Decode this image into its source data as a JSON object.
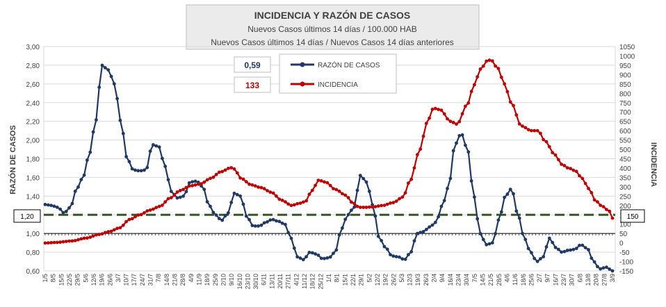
{
  "chart_data": {
    "type": "line",
    "title": "INCIDENCIA Y RAZÓN DE CASOS",
    "subtitle_1": "Nuevos Casos últimos 14 días / 100.000 HAB",
    "subtitle_2": "Nuevos Casos últimos 14 días / Nuevos Casos 14 días anteriores",
    "ylabel_left": "RAZÓN DE CASOS",
    "ylabel_right": "INCIDENCIA",
    "ylim_left": [
      0.6,
      3.0
    ],
    "ylim_right": [
      -150,
      1050
    ],
    "yticks_left": [
      "0,60",
      "0,80",
      "1,00",
      "1,20",
      "1,40",
      "1,60",
      "1,80",
      "2,00",
      "2,20",
      "2,40",
      "2,60",
      "2,80",
      "3,00"
    ],
    "yticks_right": [
      "-150",
      "-100",
      "-50",
      "0",
      "50",
      "100",
      "150",
      "200",
      "250",
      "300",
      "350",
      "400",
      "450",
      "500",
      "550",
      "600",
      "650",
      "700",
      "750",
      "800",
      "850",
      "900",
      "950",
      "1000",
      "1050"
    ],
    "x_categories": [
      "1/5",
      "8/5",
      "15/5",
      "22/5",
      "29/5",
      "5/6",
      "12/6",
      "19/6",
      "26/6",
      "3/7",
      "10/7",
      "17/7",
      "24/7",
      "31/7",
      "7/8",
      "14/8",
      "21/8",
      "28/8",
      "4/9",
      "11/9",
      "18/9",
      "25/9",
      "2/10",
      "9/10",
      "16/10",
      "23/10",
      "30/10",
      "6/11",
      "13/11",
      "20/11",
      "27/11",
      "4/12",
      "11/12",
      "18/12",
      "25/12",
      "1/1",
      "8/1",
      "15/1",
      "22/1",
      "29/1",
      "5/2",
      "12/2",
      "19/2",
      "26/2",
      "5/3",
      "12/3",
      "19/3",
      "26/3",
      "2/4",
      "9/4",
      "16/4",
      "23/4",
      "30/4",
      "7/5",
      "14/5",
      "21/5",
      "28/5",
      "4/6",
      "11/6",
      "18/6",
      "25/6",
      "2/7",
      "9/7",
      "16/7",
      "23/7",
      "30/7",
      "6/8",
      "13/8",
      "20/8",
      "27/8",
      "3/9"
    ],
    "threshold": {
      "value": 1.2,
      "axis": "left",
      "label": "1,20",
      "right_label": "150",
      "color": "#375623"
    },
    "legend": [
      {
        "name": "RAZÓN DE CASOS",
        "current": "0,59",
        "color": "#1f3864"
      },
      {
        "name": "INCIDENCIA",
        "current": "133",
        "color": "#c00000"
      }
    ],
    "series": [
      {
        "name": "RAZÓN DE CASOS",
        "axis": "left",
        "color": "#1f3864",
        "keypoints": [
          [
            0,
            1.31
          ],
          [
            1,
            1.3
          ],
          [
            2,
            1.28
          ],
          [
            3,
            1.22
          ],
          [
            4,
            1.28
          ],
          [
            5,
            1.48
          ],
          [
            6,
            1.6
          ],
          [
            7,
            1.85
          ],
          [
            8,
            2.2
          ],
          [
            9,
            2.8
          ],
          [
            10,
            2.75
          ],
          [
            11,
            2.6
          ],
          [
            12,
            2.2
          ],
          [
            13,
            1.8
          ],
          [
            14,
            1.68
          ],
          [
            15,
            1.67
          ],
          [
            16,
            1.68
          ],
          [
            17,
            1.95
          ],
          [
            18,
            1.93
          ],
          [
            19,
            1.72
          ],
          [
            20,
            1.45
          ],
          [
            21,
            1.38
          ],
          [
            22,
            1.4
          ],
          [
            23,
            1.55
          ],
          [
            24,
            1.56
          ],
          [
            25,
            1.5
          ],
          [
            26,
            1.3
          ],
          [
            27,
            1.2
          ],
          [
            28,
            1.14
          ],
          [
            29,
            1.22
          ],
          [
            30,
            1.43
          ],
          [
            31,
            1.4
          ],
          [
            32,
            1.18
          ],
          [
            33,
            1.08
          ],
          [
            34,
            1.08
          ],
          [
            35,
            1.12
          ],
          [
            36,
            1.15
          ],
          [
            37,
            1.13
          ],
          [
            38,
            1.1
          ],
          [
            39,
            0.95
          ],
          [
            40,
            0.75
          ],
          [
            41,
            0.72
          ],
          [
            42,
            0.8
          ],
          [
            43,
            0.78
          ],
          [
            44,
            0.73
          ],
          [
            45,
            0.74
          ],
          [
            46,
            0.8
          ],
          [
            47,
            1.05
          ],
          [
            48,
            1.2
          ],
          [
            49,
            1.28
          ],
          [
            50,
            1.62
          ],
          [
            51,
            1.55
          ],
          [
            52,
            1.3
          ],
          [
            53,
            0.95
          ],
          [
            54,
            0.85
          ],
          [
            55,
            0.76
          ],
          [
            56,
            0.75
          ],
          [
            57,
            0.72
          ],
          [
            58,
            0.8
          ],
          [
            59,
            1.0
          ],
          [
            60,
            1.02
          ],
          [
            61,
            1.07
          ],
          [
            62,
            1.12
          ],
          [
            63,
            1.3
          ],
          [
            64,
            1.5
          ],
          [
            65,
            1.95
          ],
          [
            66,
            2.07
          ],
          [
            67,
            1.9
          ],
          [
            68,
            1.4
          ],
          [
            69,
            1.0
          ],
          [
            70,
            0.88
          ],
          [
            71,
            0.9
          ],
          [
            72,
            1.15
          ],
          [
            73,
            1.4
          ],
          [
            74,
            1.48
          ],
          [
            75,
            1.2
          ],
          [
            76,
            0.95
          ],
          [
            77,
            0.8
          ],
          [
            78,
            0.7
          ],
          [
            79,
            0.75
          ],
          [
            80,
            0.95
          ],
          [
            81,
            0.85
          ],
          [
            82,
            0.8
          ],
          [
            83,
            0.82
          ],
          [
            84,
            0.83
          ],
          [
            85,
            0.88
          ],
          [
            86,
            0.84
          ],
          [
            87,
            0.7
          ],
          [
            88,
            0.62
          ],
          [
            89,
            0.64
          ],
          [
            90,
            0.6
          ]
        ]
      },
      {
        "name": "INCIDENCIA",
        "axis": "right",
        "color": "#c00000",
        "keypoints": [
          [
            0,
            -1
          ],
          [
            3,
            2
          ],
          [
            8,
            10
          ],
          [
            12,
            25
          ],
          [
            16,
            45
          ],
          [
            19,
            60
          ],
          [
            22,
            80
          ],
          [
            25,
            125
          ],
          [
            28,
            150
          ],
          [
            31,
            175
          ],
          [
            34,
            195
          ],
          [
            37,
            240
          ],
          [
            40,
            280
          ],
          [
            43,
            305
          ],
          [
            46,
            315
          ],
          [
            49,
            345
          ],
          [
            52,
            380
          ],
          [
            55,
            402
          ],
          [
            56,
            395
          ],
          [
            58,
            345
          ],
          [
            61,
            310
          ],
          [
            64,
            295
          ],
          [
            67,
            270
          ],
          [
            70,
            228
          ],
          [
            73,
            200
          ],
          [
            75,
            210
          ],
          [
            77,
            220
          ],
          [
            79,
            280
          ],
          [
            81,
            335
          ],
          [
            83,
            325
          ],
          [
            86,
            285
          ],
          [
            89,
            255
          ],
          [
            91,
            215
          ],
          [
            93,
            190
          ],
          [
            95,
            190
          ],
          [
            97,
            192
          ],
          [
            100,
            200
          ],
          [
            103,
            215
          ],
          [
            106,
            245
          ],
          [
            108,
            330
          ],
          [
            111,
            500
          ],
          [
            113,
            640
          ],
          [
            115,
            720
          ],
          [
            117,
            712
          ],
          [
            120,
            650
          ],
          [
            122,
            635
          ],
          [
            125,
            740
          ],
          [
            127,
            845
          ],
          [
            129,
            930
          ],
          [
            131,
            975
          ],
          [
            132,
            978
          ],
          [
            134,
            935
          ],
          [
            136,
            850
          ],
          [
            138,
            750
          ],
          [
            141,
            625
          ],
          [
            144,
            600
          ],
          [
            146,
            600
          ],
          [
            148,
            545
          ],
          [
            151,
            470
          ],
          [
            153,
            420
          ],
          [
            155,
            400
          ],
          [
            157,
            385
          ],
          [
            159,
            345
          ],
          [
            161,
            290
          ],
          [
            163,
            225
          ],
          [
            165,
            195
          ],
          [
            167,
            170
          ],
          [
            168,
            132
          ]
        ],
        "x_scale": 90,
        "x_scale_src": 168
      }
    ]
  }
}
